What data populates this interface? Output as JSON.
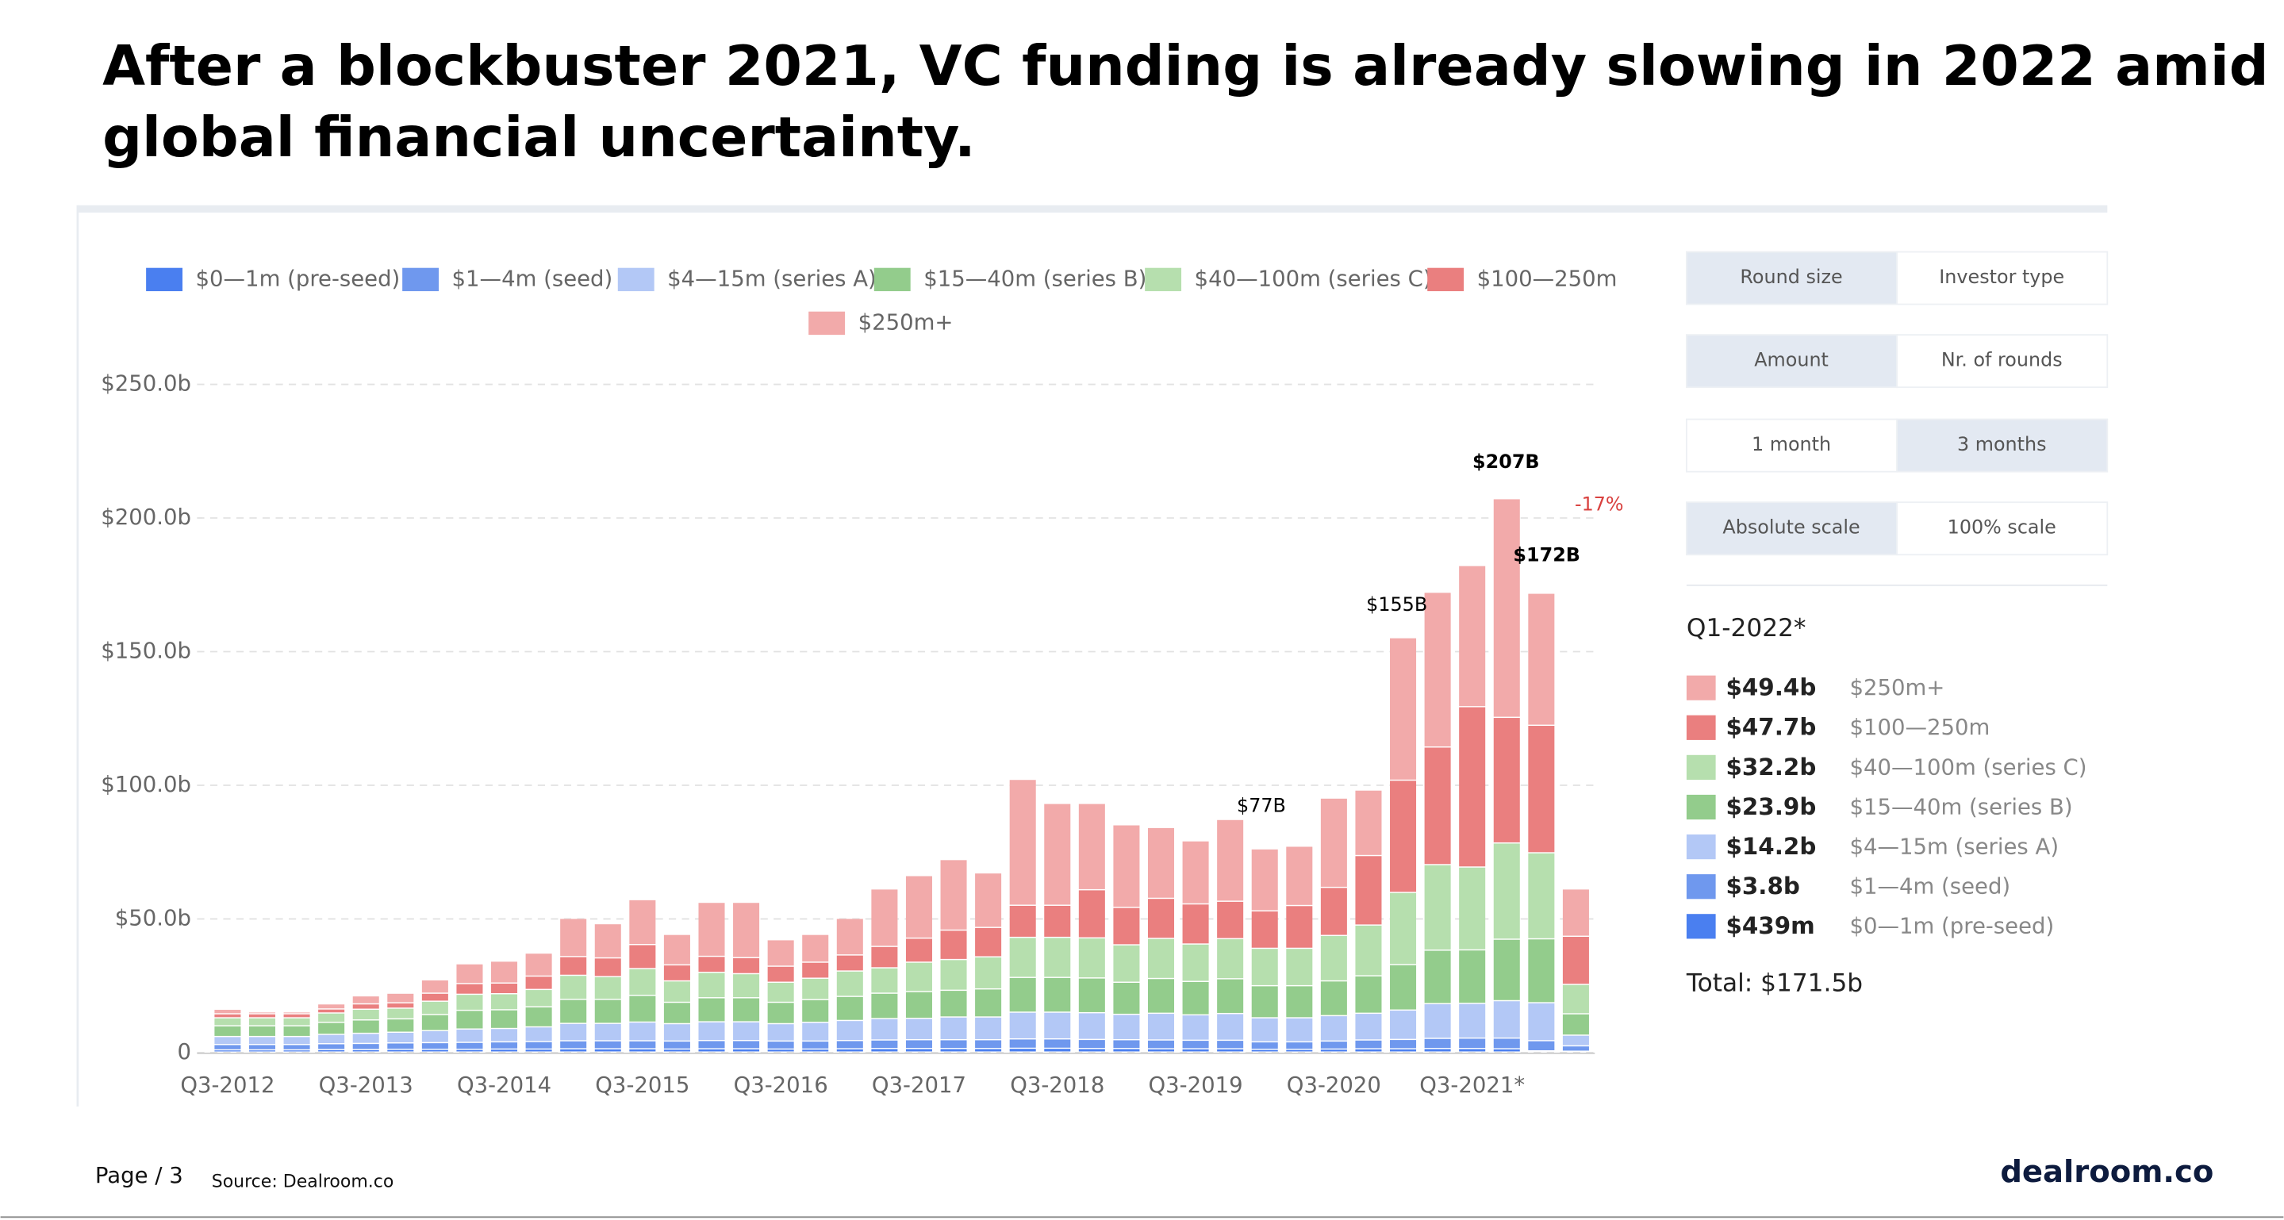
{
  "title_lines": [
    "After a blockbuster 2021, VC funding is already slowing in 2022 amid",
    "global financial uncertainty."
  ],
  "chart_data": {
    "type": "bar",
    "stacked": true,
    "categories": [
      "Q3-2012",
      null,
      null,
      null,
      "Q3-2013",
      null,
      null,
      null,
      "Q3-2014",
      null,
      null,
      null,
      "Q3-2015",
      null,
      null,
      null,
      "Q3-2016",
      null,
      null,
      null,
      "Q3-2017",
      null,
      null,
      null,
      "Q3-2018",
      null,
      null,
      null,
      "Q3-2019",
      null,
      null,
      null,
      "Q3-2020",
      null,
      null,
      null,
      "Q3-2021*",
      null,
      null,
      null
    ],
    "series": [
      {
        "name": "$0—1m (pre-seed)",
        "color": "#4a7ff0",
        "values": [
          0.8,
          0.8,
          0.8,
          0.9,
          0.9,
          1,
          1,
          1,
          1.1,
          1.1,
          1.2,
          1.2,
          1.2,
          1.1,
          1.2,
          1.2,
          1.1,
          1.1,
          1.2,
          1.3,
          1.3,
          1.3,
          1.3,
          1.4,
          1.4,
          1.3,
          1.3,
          1.2,
          1.2,
          1.2,
          1,
          1,
          1.1,
          1.2,
          1.2,
          1.3,
          1.3,
          1.2,
          0.439,
          0.3
        ]
      },
      {
        "name": "$1—4m (seed)",
        "color": "#6f98ee",
        "values": [
          2,
          2,
          2,
          2.2,
          2.3,
          2.4,
          2.5,
          2.6,
          2.7,
          2.8,
          3,
          3,
          3,
          3,
          3.1,
          3.1,
          3,
          3,
          3.1,
          3.2,
          3.3,
          3.3,
          3.3,
          3.5,
          3.5,
          3.4,
          3.3,
          3.3,
          3.2,
          3.2,
          2.8,
          2.8,
          3,
          3.3,
          3.5,
          3.8,
          3.9,
          4,
          3.8,
          2
        ]
      },
      {
        "name": "$4—15m (series A)",
        "color": "#b3c8f6",
        "values": [
          3,
          3,
          3,
          3.5,
          3.8,
          4,
          4.5,
          5,
          5,
          5.5,
          6.5,
          6.5,
          7,
          6.5,
          7,
          7,
          6.5,
          7,
          7.5,
          8,
          8,
          8.5,
          8.5,
          10,
          10,
          10,
          9.5,
          10,
          9.5,
          10,
          9,
          9,
          9.5,
          10,
          11,
          13,
          13,
          14,
          14.2,
          4
        ]
      },
      {
        "name": "$15—40m (series B)",
        "color": "#93cc8c",
        "values": [
          4,
          4,
          4,
          4.5,
          5,
          5,
          6,
          7,
          7,
          7.5,
          9,
          9,
          10,
          8,
          9,
          9,
          8,
          8.5,
          9,
          9.5,
          10,
          10,
          10.5,
          13,
          13,
          13,
          12,
          13,
          12.5,
          13,
          12,
          12,
          13,
          14,
          17,
          20,
          20,
          23,
          23.9,
          8
        ]
      },
      {
        "name": "$40—100m (series C)",
        "color": "#b6dfae",
        "values": [
          3,
          3,
          3,
          3.5,
          4,
          4,
          5,
          6,
          6,
          6.5,
          9,
          8.5,
          10,
          8,
          9.5,
          9,
          7.5,
          8,
          9.5,
          9.5,
          11,
          11.5,
          12,
          15,
          15,
          15,
          14,
          15,
          14,
          15,
          14,
          14,
          17,
          19,
          27,
          32,
          31,
          36,
          32.2,
          11
        ]
      },
      {
        "name": "$100—250m",
        "color": "#ea7f7f",
        "values": [
          1.5,
          1.5,
          1.5,
          1.5,
          2,
          2,
          3,
          4,
          4,
          5,
          7,
          7,
          9,
          6,
          6,
          6,
          6,
          6,
          6,
          8,
          9,
          11,
          11,
          12,
          12,
          18,
          14,
          15,
          15,
          14,
          14,
          16,
          18,
          26,
          42,
          44,
          60,
          47,
          47.7,
          18
        ]
      },
      {
        "name": "$250m+",
        "color": "#f2aaaa",
        "values": [
          1.7,
          0.7,
          0.7,
          1.9,
          3,
          3.6,
          5,
          7.4,
          8.2,
          8.6,
          14.3,
          12.8,
          16.8,
          11.4,
          20.2,
          20.7,
          9.9,
          10.4,
          13.7,
          21.5,
          23.4,
          26.4,
          20.4,
          47.1,
          38.1,
          32.3,
          30.9,
          26.5,
          23.6,
          30.6,
          23.2,
          22.2,
          33.4,
          24.5,
          53.3,
          57.9,
          52.8,
          81.8,
          49.4,
          17.7
        ]
      }
    ],
    "ylim": [
      0,
      250
    ],
    "yticks": [
      0,
      {
        "value": 50,
        "label": "$50.0b"
      },
      {
        "value": 100,
        "label": "$100.0b"
      },
      {
        "value": 150,
        "label": "$150.0b"
      },
      {
        "value": 200,
        "label": "$200.0b"
      },
      {
        "value": 250,
        "label": "$250.0b"
      }
    ],
    "grid": true,
    "annotations": [
      {
        "text": "$207B",
        "color": "#000000"
      },
      {
        "text": "$172B",
        "color": "#000000"
      },
      {
        "text": "$155B",
        "color": "#000000"
      },
      {
        "text": "$77B",
        "color": "#000000"
      },
      {
        "text": "-17%",
        "color": "#d9413f"
      }
    ]
  },
  "panel": {
    "buttons": [
      [
        "Round size",
        "Investor type"
      ],
      [
        "Amount",
        "Nr. of rounds"
      ],
      [
        "1 month",
        "3 months"
      ],
      [
        "Absolute scale",
        "100% scale"
      ]
    ],
    "period": "Q1-2022*",
    "items": [
      {
        "amount": "$49.4b",
        "label": "$250m+",
        "color": "#f2aaaa"
      },
      {
        "amount": "$47.7b",
        "label": "$100—250m",
        "color": "#ea7f7f"
      },
      {
        "amount": "$32.2b",
        "label": "$40—100m (series C)",
        "color": "#b6dfae"
      },
      {
        "amount": "$23.9b",
        "label": "$15—40m (series B)",
        "color": "#93cc8c"
      },
      {
        "amount": "$14.2b",
        "label": "$4—15m (series A)",
        "color": "#b3c8f6"
      },
      {
        "amount": "$3.8b",
        "label": "$1—4m (seed)",
        "color": "#6f98ee"
      },
      {
        "amount": "$439m",
        "label": "$0—1m (pre-seed)",
        "color": "#4a7ff0"
      }
    ],
    "total": "Total: $171.5b"
  },
  "footer": {
    "page": "Page / 3",
    "source": "Source: Dealroom.co",
    "brand": "dealroom.co"
  }
}
